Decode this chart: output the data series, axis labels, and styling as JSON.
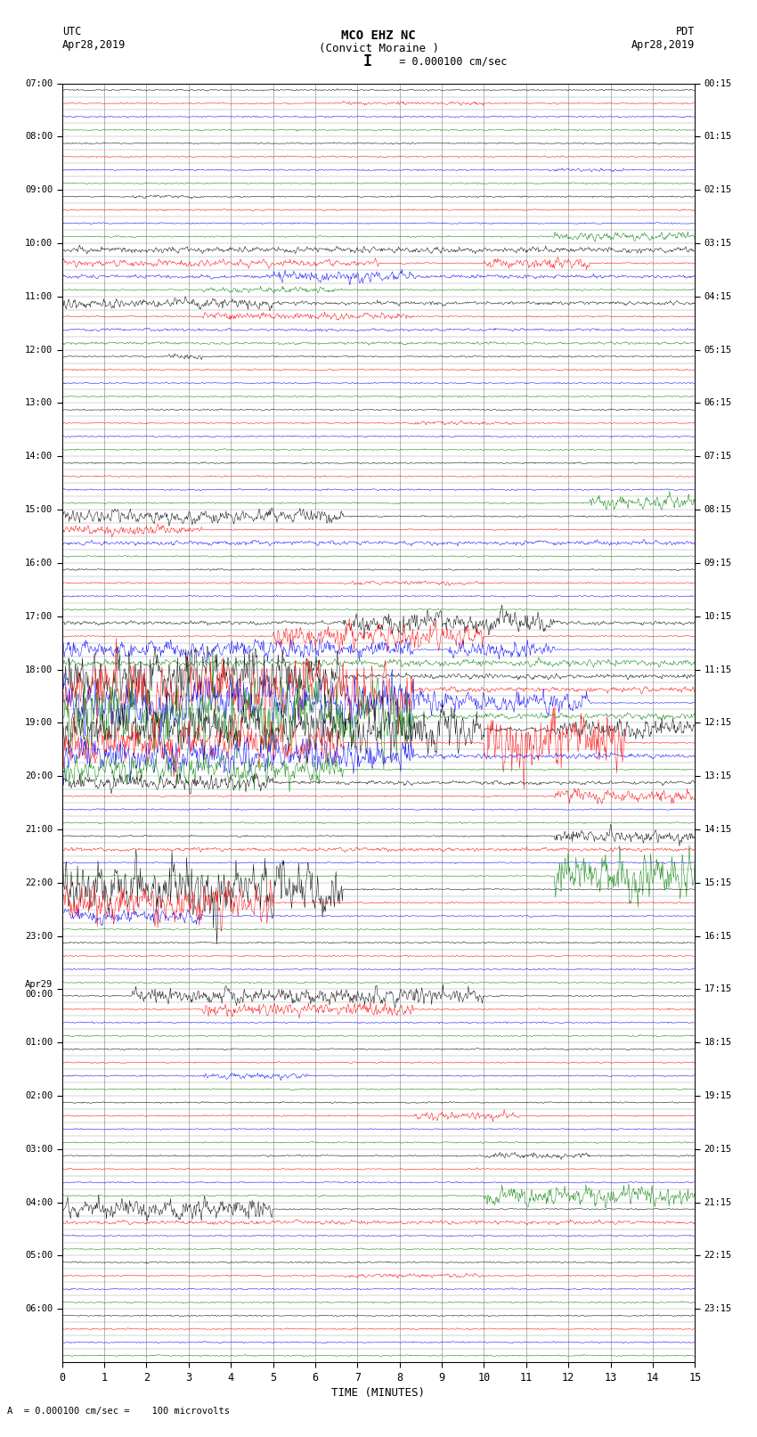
{
  "title_line1": "MCO EHZ NC",
  "title_line2": "(Convict Moraine )",
  "scale_label": "  = 0.000100 cm/sec",
  "bottom_label": "A  = 0.000100 cm/sec =    100 microvolts",
  "utc_label": "UTC",
  "utc_date": "Apr28,2019",
  "pdt_label": "PDT",
  "pdt_date": "Apr28,2019",
  "xlabel": "TIME (MINUTES)",
  "left_times_major": [
    "07:00",
    "08:00",
    "09:00",
    "10:00",
    "11:00",
    "12:00",
    "13:00",
    "14:00",
    "15:00",
    "16:00",
    "17:00",
    "18:00",
    "19:00",
    "20:00",
    "21:00",
    "22:00",
    "23:00",
    "Apr29\n00:00",
    "01:00",
    "02:00",
    "03:00",
    "04:00",
    "05:00",
    "06:00"
  ],
  "right_times_major": [
    "00:15",
    "01:15",
    "02:15",
    "03:15",
    "04:15",
    "05:15",
    "06:15",
    "07:15",
    "08:15",
    "09:15",
    "10:15",
    "11:15",
    "12:15",
    "13:15",
    "14:15",
    "15:15",
    "16:15",
    "17:15",
    "18:15",
    "19:15",
    "20:15",
    "21:15",
    "22:15",
    "23:15"
  ],
  "num_rows": 96,
  "minutes_per_row": 15,
  "colors_cycle": [
    "black",
    "red",
    "blue",
    "green"
  ],
  "bg_color": "#ffffff",
  "grid_color": "#999999",
  "noise_scale": 0.008,
  "seed": 12345
}
